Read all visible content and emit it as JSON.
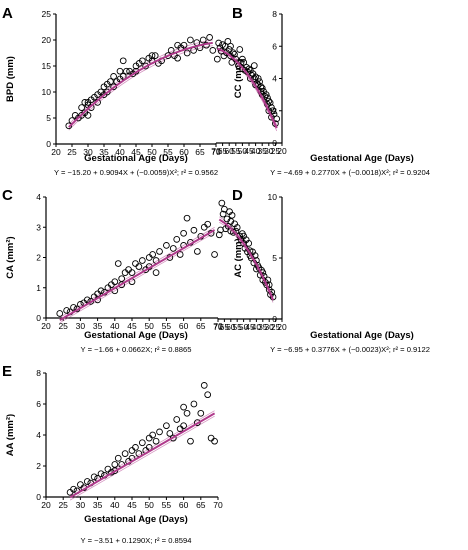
{
  "figure": {
    "accent_color": "#b03a8c"
  },
  "chart_data": [
    {
      "id": "A",
      "type": "scatter",
      "letter": "A",
      "xlabel": "Gestational Age (Days)",
      "ylabel": "BPD (mm)",
      "xlim": [
        20,
        70
      ],
      "ylim": [
        0,
        25
      ],
      "xticks": [
        20,
        25,
        30,
        35,
        40,
        45,
        50,
        55,
        60,
        65,
        70
      ],
      "yticks": [
        0,
        5,
        10,
        15,
        20,
        25
      ],
      "equation": "Y = −15.20 + 0.9094X + (−0.0059)X²; r² = 0.9562",
      "fit": {
        "model": "quadratic",
        "coefficients": [
          -15.2,
          0.9094,
          -0.0059
        ],
        "x_range": [
          24,
          69
        ]
      },
      "series": [
        {
          "x": [
            24,
            25,
            26,
            27,
            28,
            28,
            29,
            29,
            30,
            30,
            30,
            31,
            31,
            32,
            33,
            33,
            34,
            35,
            35,
            36,
            36,
            37,
            38,
            38,
            39,
            40,
            40,
            41,
            41,
            42,
            43,
            44,
            45,
            45,
            46,
            47,
            48,
            49,
            50,
            50,
            51,
            52,
            53,
            55,
            56,
            57,
            58,
            58,
            59,
            60,
            61,
            62,
            63,
            64,
            65,
            66,
            67,
            68,
            69
          ],
          "y": [
            3.5,
            4.5,
            5.5,
            5,
            7,
            5.5,
            8,
            6,
            7.5,
            5.5,
            8,
            7,
            8.5,
            9,
            9.5,
            8,
            10,
            11,
            9.5,
            11.5,
            10,
            12,
            11,
            13,
            12,
            14,
            12.5,
            13,
            16,
            14,
            14,
            13.5,
            15,
            14,
            15.5,
            16,
            15,
            16.5,
            16,
            17,
            17,
            15.5,
            16,
            17,
            18,
            17,
            16.5,
            19,
            18.5,
            19,
            17.5,
            20,
            18,
            19.5,
            18.5,
            20,
            19,
            20.5,
            18
          ]
        }
      ]
    },
    {
      "id": "B",
      "type": "scatter",
      "letter": "B",
      "xlabel": "Gestational Age (Days)",
      "ylabel": "CC (mm)",
      "xlim": [
        20,
        70
      ],
      "ylim": [
        0,
        8
      ],
      "xticks": [
        20,
        25,
        30,
        35,
        40,
        45,
        50,
        55,
        60,
        65,
        70
      ],
      "yticks": [
        0,
        2,
        4,
        6,
        8
      ],
      "equation": "Y = −4.69 + 0.2770X + (−0.0018)X²; r² = 0.9204",
      "fit": {
        "model": "quadratic",
        "coefficients": [
          -4.69,
          0.277,
          -0.0018
        ],
        "x_range": [
          24,
          69
        ]
      },
      "series": [
        {
          "x": [
            24,
            25,
            26,
            27,
            28,
            28,
            29,
            30,
            30,
            31,
            31,
            32,
            33,
            34,
            35,
            35,
            36,
            36,
            37,
            38,
            38,
            39,
            40,
            40,
            41,
            41,
            42,
            43,
            44,
            44,
            45,
            46,
            47,
            48,
            49,
            50,
            50,
            51,
            52,
            53,
            55,
            56,
            57,
            58,
            59,
            59,
            60,
            61,
            62,
            63,
            64,
            65,
            66,
            67,
            68,
            69
          ],
          "y": [
            1.5,
            1.2,
            1.8,
            2,
            2.2,
            1.6,
            2.5,
            2,
            2.6,
            2.4,
            2.8,
            3,
            2.9,
            3.2,
            3.4,
            3,
            3.5,
            3.2,
            3.8,
            3.6,
            4,
            3.7,
            4.1,
            3.6,
            4.8,
            4,
            4.3,
            4.2,
            4.5,
            4,
            4.6,
            4.4,
            4.7,
            4.5,
            5,
            4.6,
            5.2,
            5,
            5.8,
            4.8,
            5.2,
            5.5,
            5.6,
            5,
            6,
            5.4,
            5.8,
            6.3,
            5.6,
            6,
            5.4,
            6.1,
            5.7,
            5.9,
            6.2,
            5.2
          ]
        }
      ]
    },
    {
      "id": "C",
      "type": "scatter",
      "letter": "C",
      "xlabel": "Gestational Age (Days)",
      "ylabel": "CA (mm²)",
      "xlim": [
        20,
        70
      ],
      "ylim": [
        0,
        4
      ],
      "xticks": [
        20,
        25,
        30,
        35,
        40,
        45,
        50,
        55,
        60,
        65,
        70
      ],
      "yticks": [
        0,
        1,
        2,
        3,
        4
      ],
      "equation": "Y = −1.66 + 0.0662X; r² = 0.8865",
      "fit": {
        "model": "linear",
        "coefficients": [
          -1.66,
          0.0662
        ],
        "x_range": [
          24,
          69
        ]
      },
      "series": [
        {
          "x": [
            24,
            26,
            27,
            28,
            29,
            30,
            31,
            32,
            33,
            34,
            35,
            35,
            36,
            37,
            38,
            39,
            40,
            40,
            41,
            42,
            42,
            43,
            44,
            45,
            45,
            46,
            47,
            48,
            49,
            50,
            50,
            51,
            52,
            52,
            53,
            55,
            56,
            57,
            58,
            59,
            60,
            60,
            61,
            62,
            63,
            64,
            65,
            66,
            67,
            68,
            69
          ],
          "y": [
            0.15,
            0.25,
            0.2,
            0.35,
            0.3,
            0.45,
            0.5,
            0.6,
            0.55,
            0.7,
            0.8,
            0.6,
            0.9,
            0.85,
            1,
            1.1,
            1.2,
            0.9,
            1.8,
            1.3,
            1.1,
            1.5,
            1.6,
            1.5,
            1.2,
            1.8,
            1.7,
            1.9,
            1.6,
            2,
            1.7,
            2.1,
            1.9,
            1.5,
            2.2,
            2.4,
            2,
            2.3,
            2.6,
            2.1,
            2.8,
            2.4,
            3.3,
            2.5,
            2.9,
            2.2,
            2.7,
            3,
            3.1,
            2.8,
            2.1
          ]
        }
      ]
    },
    {
      "id": "D",
      "type": "scatter",
      "letter": "D",
      "xlabel": "Gestational Age (Days)",
      "ylabel": "AC (mm)",
      "xlim": [
        20,
        70
      ],
      "ylim": [
        0,
        10
      ],
      "xticks": [
        20,
        25,
        30,
        35,
        40,
        45,
        50,
        55,
        60,
        65,
        70
      ],
      "yticks": [
        0,
        5,
        10
      ],
      "equation": "Y = −6.95 + 0.3776X + (−0.0023)X²; r² = 0.9122",
      "fit": {
        "model": "quadratic",
        "coefficients": [
          -6.95,
          0.3776,
          -0.0023
        ],
        "x_range": [
          27,
          69
        ]
      },
      "series": [
        {
          "x": [
            27,
            28,
            29,
            30,
            30,
            31,
            32,
            33,
            34,
            35,
            35,
            36,
            37,
            38,
            39,
            40,
            40,
            41,
            42,
            43,
            44,
            45,
            45,
            46,
            47,
            48,
            49,
            50,
            50,
            51,
            52,
            53,
            55,
            56,
            57,
            58,
            59,
            60,
            60,
            61,
            62,
            63,
            64,
            65,
            66,
            67,
            68,
            69
          ],
          "y": [
            1.8,
            2.2,
            2,
            2.8,
            2.4,
            3.2,
            2.8,
            3,
            3.5,
            3.8,
            3.2,
            4,
            3.6,
            4.2,
            4.4,
            4.8,
            4.1,
            5.2,
            4.6,
            5.5,
            5,
            5.6,
            5.2,
            6.2,
            5.5,
            6.5,
            5.8,
            6.8,
            6.2,
            7,
            6.5,
            6.8,
            7.5,
            7.2,
            7.8,
            7.1,
            8.5,
            8,
            7.2,
            8.8,
            7.6,
            8.2,
            7.4,
            9,
            8.6,
            9.5,
            7.3,
            6.9
          ]
        }
      ]
    },
    {
      "id": "E",
      "type": "scatter",
      "letter": "E",
      "xlabel": "Gestational Age (Days)",
      "ylabel": "AA (mm²)",
      "xlim": [
        20,
        70
      ],
      "ylim": [
        0,
        8
      ],
      "xticks": [
        20,
        25,
        30,
        35,
        40,
        45,
        50,
        55,
        60,
        65,
        70
      ],
      "yticks": [
        0,
        2,
        4,
        6,
        8
      ],
      "equation": "Y = −3.51 + 0.1290X; r² = 0.8594",
      "fit": {
        "model": "linear",
        "coefficients": [
          -3.51,
          0.129
        ],
        "x_range": [
          27,
          69
        ]
      },
      "series": [
        {
          "x": [
            27,
            28,
            29,
            30,
            31,
            32,
            33,
            34,
            35,
            36,
            37,
            38,
            39,
            40,
            40,
            41,
            42,
            43,
            44,
            45,
            45,
            46,
            47,
            48,
            49,
            50,
            50,
            51,
            52,
            53,
            55,
            56,
            57,
            58,
            59,
            60,
            60,
            61,
            62,
            63,
            64,
            65,
            66,
            67,
            68,
            69
          ],
          "y": [
            0.3,
            0.5,
            0.4,
            0.8,
            0.6,
            1,
            0.9,
            1.3,
            1.2,
            1.5,
            1.4,
            1.8,
            1.6,
            2.1,
            1.7,
            2.5,
            2.1,
            2.8,
            2.3,
            3,
            2.5,
            3.2,
            2.8,
            3.5,
            3,
            3.8,
            3.2,
            4,
            3.6,
            4.2,
            4.6,
            4.1,
            3.8,
            5,
            4.4,
            5.8,
            4.6,
            5.4,
            3.6,
            6,
            4.8,
            5.4,
            7.2,
            6.6,
            3.8,
            3.6
          ]
        }
      ]
    }
  ]
}
